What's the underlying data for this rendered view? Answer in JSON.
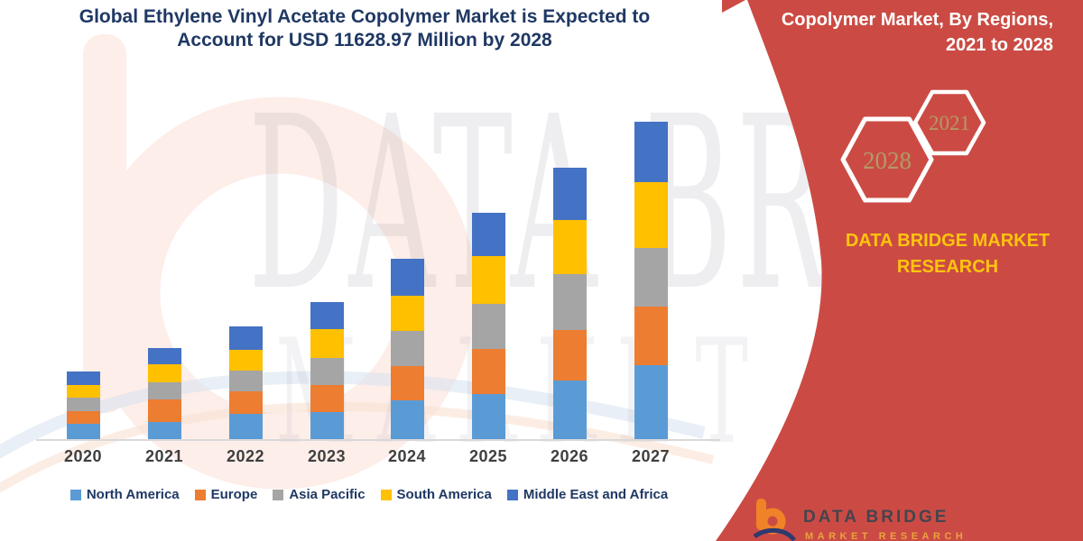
{
  "title": {
    "text": "Global Ethylene Vinyl Acetate Copolymer Market is Expected to\nAccount for USD 11628.97 Million by 2028"
  },
  "side_panel": {
    "heading": "Copolymer Market, By Regions,\n2021 to 2028",
    "hexagons": [
      {
        "label": "2028"
      },
      {
        "label": "2021"
      }
    ],
    "brand": "DATA BRIDGE MARKET\nRESEARCH",
    "logo": {
      "name": "DATA BRIDGE",
      "subtext": "MARKET RESEARCH"
    },
    "panel_color": "#cb4b44",
    "hexagon_year_color": "#b29a67",
    "brand_color": "#ffc40e"
  },
  "watermark": {
    "line1": "DATA BRIDGE",
    "line2": "MARKET RESEARCH"
  },
  "chart_data": {
    "type": "bar",
    "stacked": true,
    "title": "Global Ethylene Vinyl Acetate Copolymer Market is Expected to Account for USD 11628.97 Million by 2028",
    "categories": [
      "2020",
      "2021",
      "2022",
      "2023",
      "2024",
      "2025",
      "2026",
      "2027"
    ],
    "series": [
      {
        "name": "North America",
        "color": "#5B9BD5",
        "values": [
          490,
          550,
          810,
          870,
          1245,
          1445,
          1880,
          2370
        ]
      },
      {
        "name": "Europe",
        "color": "#ED7D31",
        "values": [
          405,
          725,
          725,
          870,
          1100,
          1445,
          1620,
          1880
        ]
      },
      {
        "name": "Asia Pacific",
        "color": "#A5A5A5",
        "values": [
          435,
          550,
          665,
          870,
          1130,
          1445,
          1795,
          1880
        ]
      },
      {
        "name": "South America",
        "color": "#FFC000",
        "values": [
          405,
          580,
          665,
          925,
          1130,
          1535,
          1735,
          2110
        ]
      },
      {
        "name": "Middle East and Africa",
        "color": "#4472C4",
        "values": [
          435,
          520,
          750,
          870,
          1185,
          1390,
          1680,
          1940
        ]
      }
    ],
    "totals": [
      2170,
      2925,
      3615,
      4405,
      5790,
      7260,
      8710,
      10180
    ],
    "units": "USD Million (est. — y-axis unlabeled in source)",
    "xlabel": "",
    "ylabel": "",
    "ylim": [
      0,
      10500
    ],
    "grid": false,
    "legend_position": "bottom"
  }
}
